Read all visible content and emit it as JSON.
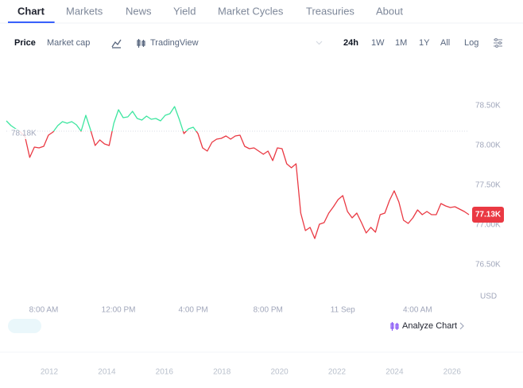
{
  "tabs": [
    "Chart",
    "Markets",
    "News",
    "Yield",
    "Market Cycles",
    "Treasuries",
    "About"
  ],
  "active_tab": 0,
  "toolbar": {
    "metrics": [
      "Price",
      "Market cap"
    ],
    "active_metric": 0,
    "tradingview": "TradingView",
    "ranges": [
      "24h",
      "1W",
      "1M",
      "1Y",
      "All"
    ],
    "active_range": 0,
    "log": "Log"
  },
  "chart_data": {
    "type": "line",
    "currency": "USD",
    "x": [
      6,
      6.25,
      6.5,
      6.75,
      7,
      7.25,
      7.5,
      7.75,
      8,
      8.25,
      8.5,
      8.75,
      9,
      9.25,
      9.5,
      9.75,
      10,
      10.25,
      10.5,
      10.75,
      11,
      11.25,
      11.5,
      11.75,
      12,
      12.25,
      12.5,
      12.75,
      13,
      13.25,
      13.5,
      13.75,
      14,
      14.25,
      14.5,
      14.75,
      15,
      15.25,
      15.5,
      15.75,
      16,
      16.25,
      16.5,
      16.75,
      17,
      17.25,
      17.5,
      17.75,
      18,
      18.25,
      18.5,
      18.75,
      19,
      19.25,
      19.5,
      19.75,
      20,
      20.25,
      20.5,
      20.75,
      21,
      21.25,
      21.5,
      21.75,
      22,
      22.25,
      22.5,
      22.75,
      23,
      23.25,
      23.5,
      23.75,
      24,
      24.25,
      24.5,
      24.75,
      25,
      25.25,
      25.5,
      25.75,
      26,
      26.25,
      26.5,
      26.75,
      27,
      27.25,
      27.5,
      27.75,
      28,
      28.25,
      28.5,
      28.75,
      29,
      29.25,
      29.5,
      29.75,
      30,
      30.25,
      30.5,
      30.75
    ],
    "series": [
      {
        "name": "Price",
        "color_above": "#3ee6a0",
        "color_below": "#ea3943",
        "values": [
          78310,
          78250,
          78210,
          78170,
          78110,
          77850,
          77980,
          77970,
          77990,
          78130,
          78170,
          78250,
          78300,
          78280,
          78300,
          78260,
          78180,
          78380,
          78200,
          78000,
          78070,
          78020,
          78000,
          78280,
          78450,
          78350,
          78360,
          78430,
          78340,
          78320,
          78370,
          78330,
          78340,
          78310,
          78380,
          78400,
          78490,
          78330,
          78150,
          78210,
          78230,
          78150,
          77970,
          77930,
          78040,
          78080,
          78090,
          78120,
          78080,
          78120,
          78130,
          77990,
          77960,
          77970,
          77930,
          77890,
          77930,
          77810,
          77970,
          77960,
          77770,
          77720,
          77770,
          77150,
          76930,
          76970,
          76830,
          77010,
          77030,
          77150,
          77230,
          77320,
          77370,
          77170,
          77090,
          77150,
          77030,
          76900,
          76970,
          76910,
          77130,
          77150,
          77310,
          77430,
          77290,
          77060,
          77020,
          77090,
          77190,
          77130,
          77170,
          77130,
          77130,
          77270,
          77240,
          77220,
          77230,
          77200,
          77170,
          77130
        ]
      }
    ],
    "current_price_label": "77.13K",
    "reference": {
      "value": 78180,
      "label": "78.18K"
    },
    "xlim": [
      6,
      30.75
    ],
    "xticks": [
      {
        "value": 8,
        "label": "8:00 AM"
      },
      {
        "value": 12,
        "label": "12:00 PM"
      },
      {
        "value": 16,
        "label": "4:00 PM"
      },
      {
        "value": 20,
        "label": "8:00 PM"
      },
      {
        "value": 24,
        "label": "11 Sep"
      },
      {
        "value": 28,
        "label": "4:00 AM"
      }
    ],
    "ylim": [
      76100,
      79000
    ],
    "yticks": [
      {
        "value": 76500,
        "label": "76.50K"
      },
      {
        "value": 77000,
        "label": "77.00K"
      },
      {
        "value": 77500,
        "label": "77.50K"
      },
      {
        "value": 78000,
        "label": "78.00K"
      },
      {
        "value": 78500,
        "label": "78.50K"
      }
    ],
    "grid": false
  },
  "analyze": "Analyze Chart",
  "navigator_years": [
    "2012",
    "2014",
    "2016",
    "2018",
    "2020",
    "2022",
    "2024",
    "2026"
  ]
}
